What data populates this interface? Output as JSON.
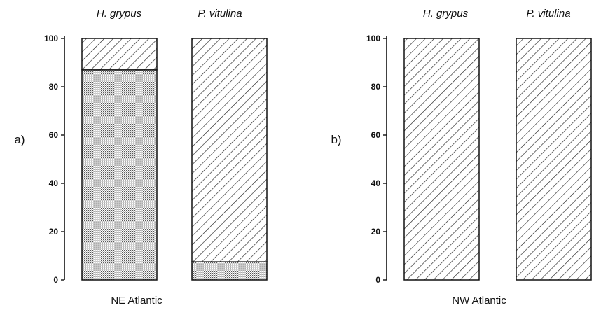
{
  "chart_data": [
    {
      "type": "bar",
      "stacked": true,
      "panel_label": "a)",
      "xlabel": "NE Atlantic",
      "categories": [
        "H. grypus",
        "P. vitulina"
      ],
      "ylim": [
        0,
        100
      ],
      "yticks": [
        0,
        20,
        40,
        60,
        80,
        100
      ],
      "series": [
        {
          "pattern": "dotted",
          "values": [
            87,
            7.5
          ]
        },
        {
          "pattern": "hatched",
          "values": [
            13,
            92.5
          ]
        }
      ],
      "grid": false
    },
    {
      "type": "bar",
      "stacked": true,
      "panel_label": "b)",
      "xlabel": "NW Atlantic",
      "categories": [
        "H. grypus",
        "P. vitulina"
      ],
      "ylim": [
        0,
        100
      ],
      "yticks": [
        0,
        20,
        40,
        60,
        80,
        100
      ],
      "series": [
        {
          "pattern": "dotted",
          "values": [
            0,
            0
          ]
        },
        {
          "pattern": "hatched",
          "values": [
            100,
            100
          ]
        }
      ],
      "grid": false
    }
  ]
}
